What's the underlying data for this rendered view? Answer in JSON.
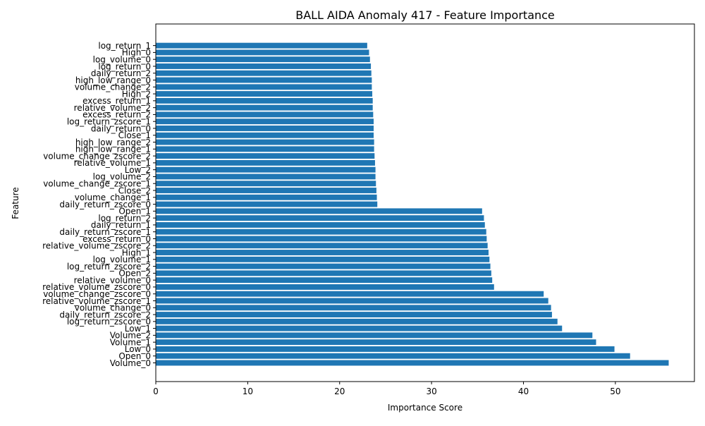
{
  "chart_data": {
    "type": "bar",
    "orientation": "horizontal",
    "title": "BALL AIDA Anomaly 417 - Feature Importance",
    "xlabel": "Importance Score",
    "ylabel": "Feature",
    "xlim": [
      0,
      58.6
    ],
    "xticks": [
      0,
      10,
      20,
      30,
      40,
      50
    ],
    "grid": false,
    "bar_color": "#1f77b4",
    "categories": [
      "Volume_0",
      "Open_0",
      "Low_0",
      "Volume_1",
      "Volume_2",
      "Low_1",
      "log_return_zscore_0",
      "daily_return_zscore_2",
      "volume_change_0",
      "relative_volume_zscore_1",
      "volume_change_zscore_0",
      "relative_volume_zscore_0",
      "relative_volume_0",
      "Open_2",
      "log_return_zscore_2",
      "log_volume_1",
      "High_1",
      "relative_volume_zscore_2",
      "excess_return_0",
      "daily_return_zscore_1",
      "daily_return_1",
      "log_return_2",
      "Open_1",
      "daily_return_zscore_0",
      "volume_change_1",
      "Close_2",
      "volume_change_zscore_1",
      "log_volume_2",
      "Low_2",
      "relative_volume_1",
      "volume_change_zscore_2",
      "high_low_range_1",
      "high_low_range_2",
      "Close_1",
      "daily_return_0",
      "log_return_zscore_1",
      "excess_return_2",
      "relative_volume_2",
      "excess_return_1",
      "High_2",
      "volume_change_2",
      "high_low_range_0",
      "daily_return_2",
      "log_return_0",
      "log_volume_0",
      "High_0",
      "log_return_1"
    ],
    "values": [
      55.8,
      51.6,
      49.9,
      47.9,
      47.5,
      44.2,
      43.7,
      43.1,
      43.0,
      42.7,
      42.2,
      36.8,
      36.6,
      36.5,
      36.4,
      36.3,
      36.2,
      36.1,
      36.0,
      35.95,
      35.8,
      35.7,
      35.5,
      24.1,
      24.05,
      24.0,
      23.95,
      23.9,
      23.9,
      23.85,
      23.8,
      23.75,
      23.75,
      23.7,
      23.7,
      23.7,
      23.65,
      23.6,
      23.6,
      23.55,
      23.5,
      23.5,
      23.45,
      23.4,
      23.3,
      23.2,
      23.0
    ]
  }
}
